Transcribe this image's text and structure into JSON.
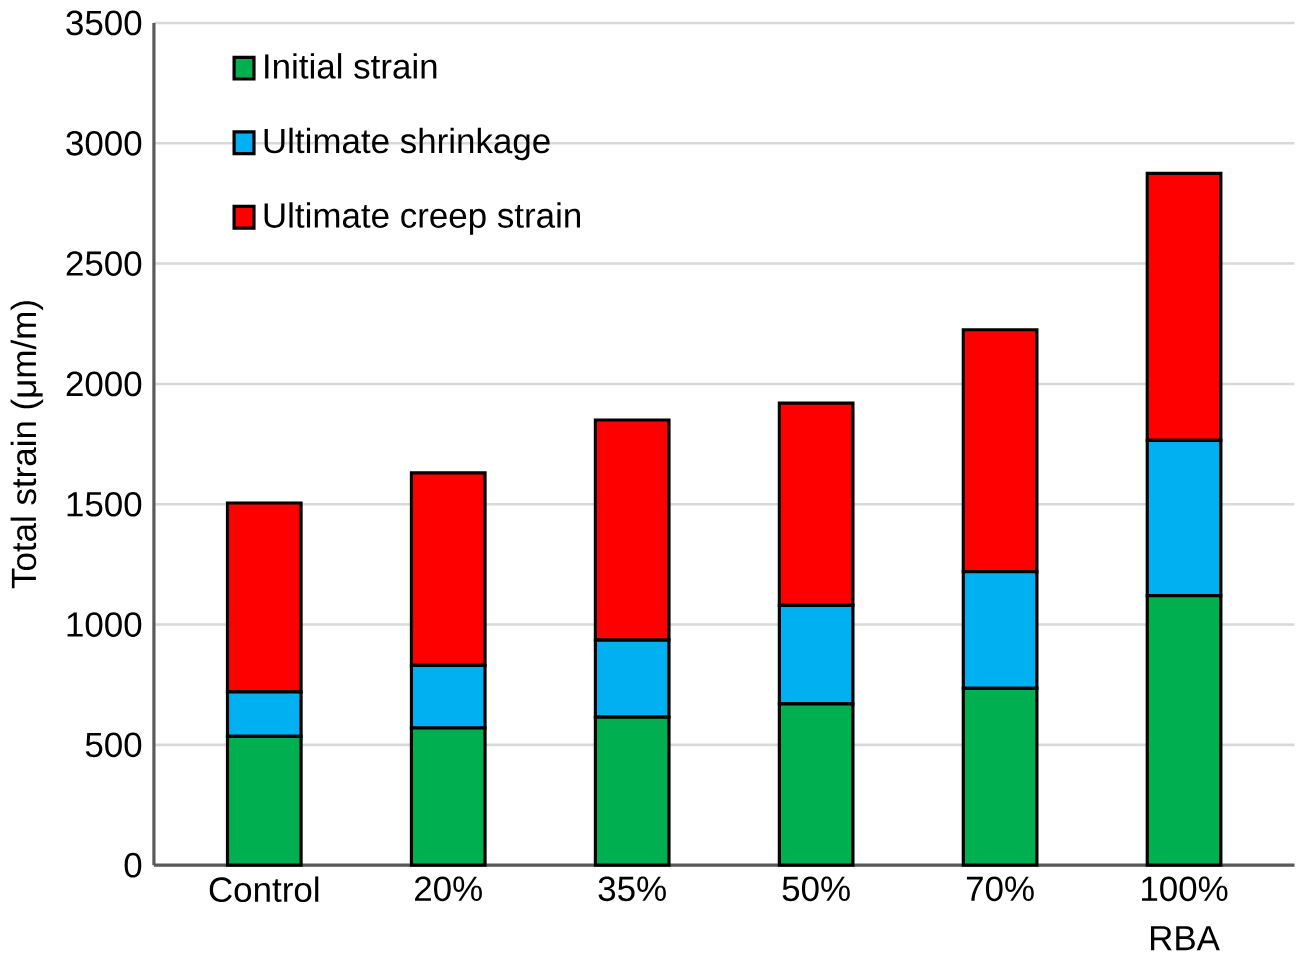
{
  "chart_data": {
    "type": "bar",
    "stacked": true,
    "ylabel": "Total strain (μm/m)",
    "xlabel": "RBA",
    "categories": [
      "Control",
      "20%",
      "35%",
      "50%",
      "70%",
      "100%"
    ],
    "series": [
      {
        "name": "Initial strain",
        "color": "#00b050",
        "values": [
          535,
          570,
          615,
          670,
          735,
          1120
        ]
      },
      {
        "name": "Ultimate shrinkage",
        "color": "#00b0f0",
        "values": [
          185,
          260,
          320,
          410,
          485,
          645
        ]
      },
      {
        "name": "Ultimate creep strain",
        "color": "#ff0000",
        "values": [
          785,
          800,
          915,
          840,
          1005,
          1110
        ]
      }
    ],
    "ylim": [
      0,
      3500
    ],
    "yticks": [
      0,
      500,
      1000,
      1500,
      2000,
      2500,
      3000,
      3500
    ],
    "grid": "y",
    "legend": "top left"
  }
}
